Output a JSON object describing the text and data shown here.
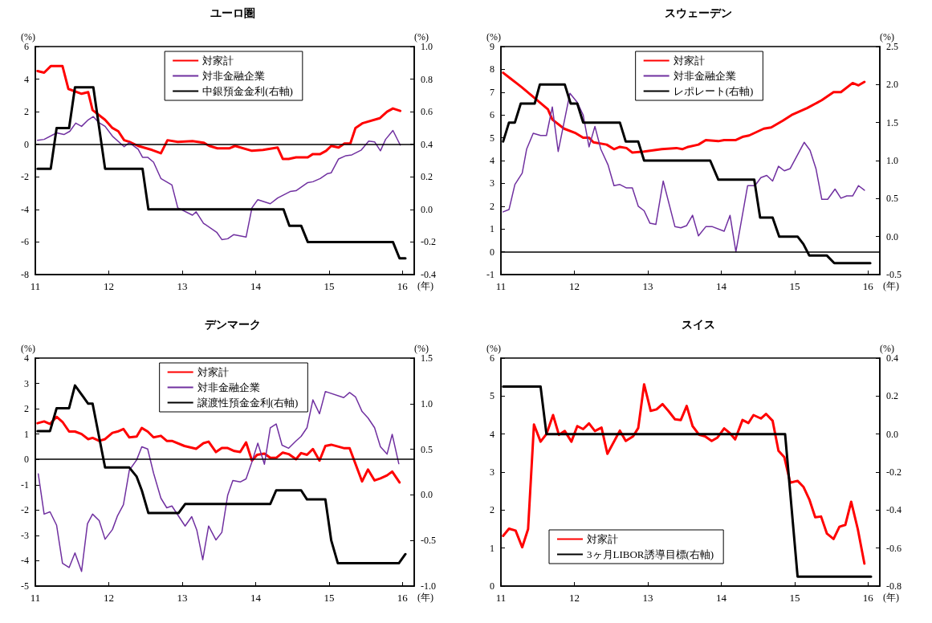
{
  "chart_data": [
    {
      "type": "line",
      "title": "ユーロ圏",
      "xlabel": "(年)",
      "ylabel": "(%)",
      "y2label": "(%)",
      "xlim": [
        11,
        16.16
      ],
      "xticks": [
        11,
        12,
        13,
        14,
        15,
        16
      ],
      "ylim": [
        -8,
        6
      ],
      "yticks": [
        -8,
        -6,
        -4,
        -2,
        0,
        2,
        4,
        6
      ],
      "y2lim": [
        -0.4,
        1.0
      ],
      "y2ticks": [
        -0.4,
        -0.2,
        {
          "value": 0,
          "label": "0.0"
        },
        0.2,
        0.4,
        0.6,
        0.8,
        {
          "value": 1,
          "label": "1.0"
        }
      ],
      "legend": "top",
      "marker": "none",
      "ref_lines": [
        {
          "axis": "y",
          "value": 0,
          "color": "#000000"
        }
      ],
      "series": [
        {
          "name": "対家計",
          "color": "#ff0000",
          "x": [
            11.03,
            11.12,
            11.21,
            11.37,
            11.45,
            11.63,
            11.72,
            11.78,
            11.95,
            12.05,
            12.13,
            12.21,
            12.28,
            12.4,
            12.59,
            12.71,
            12.8,
            12.94,
            13.14,
            13.29,
            13.37,
            13.48,
            13.64,
            13.72,
            13.95,
            14.1,
            14.3,
            14.37,
            14.45,
            14.55,
            14.71,
            14.78,
            14.88,
            14.96,
            15.03,
            15.13,
            15.21,
            15.29,
            15.36,
            15.46,
            15.69,
            15.79,
            15.87,
            15.97
          ],
          "values": [
            4.5,
            4.4,
            4.8,
            4.8,
            3.4,
            3.1,
            3.2,
            2.1,
            1.5,
            1.0,
            0.8,
            0.25,
            0.15,
            -0.1,
            -0.35,
            -0.55,
            0.25,
            0.15,
            0.2,
            0.1,
            -0.1,
            -0.25,
            -0.25,
            -0.1,
            -0.4,
            -0.35,
            -0.2,
            -0.9,
            -0.9,
            -0.8,
            -0.8,
            -0.6,
            -0.6,
            -0.4,
            -0.1,
            -0.2,
            0.05,
            0.05,
            1.0,
            1.3,
            1.6,
            2.0,
            2.2,
            2.05
          ]
        },
        {
          "name": "対非金融企業",
          "color": "#7030a0",
          "x": [
            11.03,
            11.12,
            11.29,
            11.39,
            11.47,
            11.55,
            11.63,
            11.72,
            11.79,
            11.86,
            11.95,
            12.05,
            12.21,
            12.28,
            12.4,
            12.46,
            12.53,
            12.61,
            12.71,
            12.86,
            12.94,
            13.14,
            13.19,
            13.29,
            13.47,
            13.54,
            13.62,
            13.7,
            13.87,
            13.95,
            14.03,
            14.2,
            14.3,
            14.47,
            14.55,
            14.71,
            14.78,
            14.88,
            14.98,
            15.03,
            15.13,
            15.23,
            15.31,
            15.44,
            15.54,
            15.62,
            15.7,
            15.77,
            15.87,
            15.97
          ],
          "values": [
            0.25,
            0.3,
            0.7,
            0.6,
            0.8,
            1.3,
            1.1,
            1.5,
            1.7,
            1.35,
            1.1,
            0.5,
            -0.15,
            0.1,
            -0.3,
            -0.8,
            -0.8,
            -1.1,
            -2.1,
            -2.5,
            -3.9,
            -4.35,
            -4.15,
            -4.85,
            -5.4,
            -5.85,
            -5.8,
            -5.55,
            -5.7,
            -3.9,
            -3.4,
            -3.65,
            -3.3,
            -2.9,
            -2.85,
            -2.35,
            -2.3,
            -2.1,
            -1.8,
            -1.75,
            -0.9,
            -0.7,
            -0.65,
            -0.35,
            0.2,
            0.15,
            -0.4,
            0.3,
            0.85,
            -0.05
          ]
        },
        {
          "name": "中銀預金金利(右軸)",
          "color": "#000000",
          "axis": "y2",
          "x": [
            11.03,
            11.21,
            11.29,
            11.46,
            11.54,
            11.79,
            11.95,
            12.46,
            12.54,
            14.38,
            14.46,
            14.62,
            14.71,
            15.87,
            15.96,
            16.04
          ],
          "values": [
            0.25,
            0.25,
            0.5,
            0.5,
            0.75,
            0.75,
            0.25,
            0.25,
            0,
            0,
            -0.1,
            -0.1,
            -0.2,
            -0.2,
            -0.3,
            -0.3
          ]
        }
      ]
    },
    {
      "type": "line",
      "title": "スウェーデン",
      "xlabel": "(年)",
      "ylabel": "(%)",
      "y2label": "(%)",
      "xlim": [
        11,
        16.16
      ],
      "xticks": [
        11,
        12,
        13,
        14,
        15,
        16
      ],
      "ylim": [
        -1,
        9
      ],
      "yticks": [
        -1,
        0,
        1,
        2,
        3,
        4,
        5,
        6,
        7,
        8,
        9
      ],
      "y2lim": [
        -0.5,
        2.5
      ],
      "y2ticks": [
        -0.5,
        {
          "value": 0,
          "label": "0.0"
        },
        0.5,
        {
          "value": 1,
          "label": "1.0"
        },
        1.5,
        {
          "value": 2,
          "label": "2.0"
        },
        2.5
      ],
      "legend": "top",
      "marker": "none",
      "ref_lines": [
        {
          "axis": "y",
          "value": 0,
          "color": "#000000"
        }
      ],
      "series": [
        {
          "name": "対家計",
          "color": "#ff0000",
          "x": [
            11.03,
            11.13,
            11.21,
            11.29,
            11.42,
            11.64,
            11.7,
            11.86,
            12.02,
            12.12,
            12.2,
            12.26,
            12.44,
            12.54,
            12.62,
            12.71,
            12.79,
            12.95,
            13.19,
            13.39,
            13.47,
            13.55,
            13.69,
            13.79,
            13.96,
            14.04,
            14.2,
            14.3,
            14.38,
            14.48,
            14.58,
            14.68,
            14.84,
            14.96,
            15.17,
            15.37,
            15.53,
            15.63,
            15.79,
            15.87,
            15.95
          ],
          "values": [
            7.85,
            7.6,
            7.4,
            7.2,
            6.85,
            6.25,
            5.8,
            5.4,
            5.2,
            5.0,
            5.0,
            4.8,
            4.7,
            4.5,
            4.6,
            4.55,
            4.35,
            4.4,
            4.5,
            4.55,
            4.5,
            4.6,
            4.7,
            4.9,
            4.85,
            4.9,
            4.9,
            5.05,
            5.1,
            5.25,
            5.4,
            5.45,
            5.75,
            6.0,
            6.3,
            6.65,
            7.0,
            7.0,
            7.4,
            7.3,
            7.45
          ]
        },
        {
          "name": "対非金融企業",
          "color": "#7030a0",
          "x": [
            11.03,
            11.11,
            11.19,
            11.29,
            11.35,
            11.44,
            11.54,
            11.62,
            11.7,
            11.78,
            11.94,
            12.04,
            12.12,
            12.2,
            12.28,
            12.36,
            12.46,
            12.54,
            12.62,
            12.71,
            12.79,
            12.87,
            12.95,
            13.03,
            13.11,
            13.21,
            13.37,
            13.45,
            13.53,
            13.61,
            13.69,
            13.79,
            13.88,
            14.04,
            14.12,
            14.2,
            14.36,
            14.46,
            14.54,
            14.62,
            14.7,
            14.78,
            14.86,
            14.94,
            15.13,
            15.21,
            15.29,
            15.37,
            15.45,
            15.55,
            15.63,
            15.71,
            15.79,
            15.87,
            15.95
          ],
          "values": [
            1.75,
            1.85,
            2.95,
            3.45,
            4.5,
            5.2,
            5.1,
            5.1,
            6.35,
            4.4,
            6.95,
            6.55,
            6.0,
            4.6,
            5.5,
            4.5,
            3.8,
            2.9,
            2.95,
            2.8,
            2.8,
            2.0,
            1.8,
            1.25,
            1.2,
            3.1,
            1.1,
            1.05,
            1.15,
            1.6,
            0.7,
            1.1,
            1.1,
            0.9,
            1.6,
            0.0,
            2.9,
            2.9,
            3.25,
            3.35,
            3.1,
            3.75,
            3.55,
            3.65,
            4.8,
            4.45,
            3.65,
            2.3,
            2.3,
            2.75,
            2.35,
            2.45,
            2.45,
            2.9,
            2.7
          ]
        },
        {
          "name": "レポレート(右軸)",
          "color": "#000000",
          "axis": "y2",
          "x": [
            11.03,
            11.11,
            11.19,
            11.27,
            11.46,
            11.53,
            11.87,
            11.95,
            12.04,
            12.12,
            12.62,
            12.7,
            12.87,
            12.95,
            13.85,
            13.96,
            14.45,
            14.53,
            14.7,
            14.79,
            15.04,
            15.12,
            15.2,
            15.44,
            15.54,
            16.03
          ],
          "values": [
            1.25,
            1.5,
            1.5,
            1.75,
            1.75,
            2.0,
            2.0,
            1.75,
            1.75,
            1.5,
            1.5,
            1.25,
            1.25,
            1.0,
            1.0,
            0.75,
            0.75,
            0.25,
            0.25,
            0,
            0,
            -0.1,
            -0.25,
            -0.25,
            -0.35,
            -0.35
          ]
        }
      ]
    },
    {
      "type": "line",
      "title": "デンマーク",
      "xlabel": "(年)",
      "ylabel": "(%)",
      "y2label": "(%)",
      "xlim": [
        11,
        16.16
      ],
      "xticks": [
        11,
        12,
        13,
        14,
        15,
        16
      ],
      "ylim": [
        -5,
        4
      ],
      "yticks": [
        -5,
        -4,
        -3,
        -2,
        -1,
        0,
        1,
        2,
        3,
        4
      ],
      "y2lim": [
        -1.0,
        1.5
      ],
      "y2ticks": [
        {
          "value": -1,
          "label": "-1.0"
        },
        -0.5,
        {
          "value": 0,
          "label": "0.0"
        },
        0.5,
        {
          "value": 1,
          "label": "1.0"
        },
        1.5
      ],
      "legend": "top",
      "marker": "none",
      "ref_lines": [
        {
          "axis": "y",
          "value": 0,
          "color": "#000000"
        }
      ],
      "series": [
        {
          "name": "対家計",
          "color": "#ff0000",
          "x": [
            11.03,
            11.12,
            11.2,
            11.29,
            11.37,
            11.46,
            11.54,
            11.63,
            11.72,
            11.78,
            11.87,
            11.95,
            12.05,
            12.12,
            12.2,
            12.28,
            12.38,
            12.45,
            12.53,
            12.61,
            12.71,
            12.79,
            12.86,
            13.03,
            13.19,
            13.29,
            13.36,
            13.46,
            13.54,
            13.62,
            13.71,
            13.79,
            13.87,
            13.95,
            14.02,
            14.12,
            14.2,
            14.28,
            14.37,
            14.45,
            14.55,
            14.62,
            14.7,
            14.78,
            14.87,
            14.95,
            15.03,
            15.21,
            15.28,
            15.45,
            15.53,
            15.62,
            15.7,
            15.79,
            15.86,
            15.96
          ],
          "values": [
            1.43,
            1.5,
            1.4,
            1.68,
            1.48,
            1.1,
            1.1,
            1.0,
            0.8,
            0.85,
            0.73,
            0.8,
            1.05,
            1.1,
            1.2,
            0.87,
            0.9,
            1.24,
            1.1,
            0.87,
            0.93,
            0.73,
            0.73,
            0.53,
            0.42,
            0.64,
            0.7,
            0.29,
            0.45,
            0.45,
            0.33,
            0.29,
            0.67,
            -0.05,
            0.18,
            0.23,
            0.06,
            0.06,
            0.27,
            0.21,
            0.01,
            0.25,
            0.18,
            0.41,
            -0.05,
            0.53,
            0.58,
            0.44,
            0.44,
            -0.87,
            -0.4,
            -0.83,
            -0.75,
            -0.63,
            -0.48,
            -0.91
          ]
        },
        {
          "name": "対非金融企業",
          "color": "#7030a0",
          "x": [
            11.04,
            11.12,
            11.2,
            11.29,
            11.37,
            11.46,
            11.54,
            11.63,
            11.71,
            11.78,
            11.87,
            11.95,
            12.05,
            12.12,
            12.2,
            12.28,
            12.38,
            12.45,
            12.53,
            12.61,
            12.71,
            12.79,
            12.86,
            13.04,
            13.13,
            13.2,
            13.28,
            13.36,
            13.46,
            13.54,
            13.62,
            13.69,
            13.79,
            13.87,
            13.95,
            14.03,
            14.12,
            14.2,
            14.28,
            14.36,
            14.45,
            14.55,
            14.62,
            14.7,
            14.78,
            14.87,
            14.95,
            15.2,
            15.28,
            15.36,
            15.45,
            15.53,
            15.62,
            15.7,
            15.79,
            15.86,
            15.95
          ],
          "values": [
            -0.57,
            -2.16,
            -2.07,
            -2.6,
            -4.1,
            -4.27,
            -3.69,
            -4.42,
            -2.54,
            -2.16,
            -2.42,
            -3.15,
            -2.77,
            -2.22,
            -1.79,
            -0.43,
            -0.02,
            0.5,
            0.41,
            -0.54,
            -1.53,
            -1.91,
            -1.84,
            -2.63,
            -2.26,
            -2.8,
            -3.96,
            -2.63,
            -3.18,
            -2.88,
            -1.41,
            -0.83,
            -0.89,
            -0.77,
            -0.1,
            0.64,
            -0.19,
            1.25,
            1.4,
            0.56,
            0.44,
            0.73,
            0.91,
            1.25,
            2.35,
            1.8,
            2.68,
            2.44,
            2.64,
            2.47,
            1.89,
            1.64,
            1.25,
            0.5,
            0.21,
            0.99,
            -0.17
          ]
        },
        {
          "name": "譲渡性預金金利(右軸)",
          "color": "#000000",
          "axis": "y2",
          "x": [
            11.03,
            11.2,
            11.29,
            11.46,
            11.54,
            11.63,
            11.72,
            11.78,
            11.95,
            12.28,
            12.38,
            12.45,
            12.54,
            12.95,
            13.04,
            14.2,
            14.28,
            14.62,
            14.7,
            14.95,
            15.03,
            15.12,
            15.95,
            16.04
          ],
          "values": [
            0.7,
            0.7,
            0.95,
            0.95,
            1.2,
            1.1,
            1.0,
            1.0,
            0.3,
            0.3,
            0.2,
            0.05,
            -0.2,
            -0.2,
            -0.1,
            -0.1,
            0.05,
            0.05,
            -0.05,
            -0.05,
            -0.5,
            -0.75,
            -0.75,
            -0.65
          ]
        }
      ]
    },
    {
      "type": "line",
      "title": "スイス",
      "xlabel": "(年)",
      "ylabel": "(%)",
      "y2label": "(%)",
      "xlim": [
        11,
        16.16
      ],
      "xticks": [
        11,
        12,
        13,
        14,
        15,
        16
      ],
      "ylim": [
        0,
        6
      ],
      "yticks": [
        0,
        1,
        2,
        3,
        4,
        5,
        6
      ],
      "y2lim": [
        -0.8,
        0.4
      ],
      "y2ticks": [
        -0.8,
        -0.6,
        -0.4,
        -0.2,
        {
          "value": 0,
          "label": "0.0"
        },
        0.2,
        0.4
      ],
      "legend": "bottom left",
      "marker": "none",
      "series": [
        {
          "name": "対家計",
          "color": "#ff0000",
          "x": [
            11.03,
            11.11,
            11.2,
            11.29,
            11.37,
            11.45,
            11.54,
            11.62,
            11.71,
            11.79,
            11.87,
            11.96,
            12.04,
            12.12,
            12.2,
            12.28,
            12.37,
            12.45,
            12.62,
            12.7,
            12.8,
            12.87,
            12.95,
            13.04,
            13.12,
            13.2,
            13.28,
            13.37,
            13.45,
            13.53,
            13.61,
            13.7,
            13.78,
            13.87,
            13.95,
            14.04,
            14.12,
            14.19,
            14.29,
            14.37,
            14.44,
            14.54,
            14.61,
            14.7,
            14.78,
            14.86,
            14.94,
            15.04,
            15.12,
            15.2,
            15.28,
            15.36,
            15.44,
            15.53,
            15.61,
            15.69,
            15.77,
            15.86,
            15.95
          ],
          "values": [
            1.32,
            1.51,
            1.46,
            1.02,
            1.5,
            4.25,
            3.8,
            4.0,
            4.5,
            3.98,
            4.08,
            3.8,
            4.21,
            4.13,
            4.28,
            4.08,
            4.17,
            3.48,
            4.09,
            3.82,
            3.94,
            4.16,
            5.31,
            4.61,
            4.65,
            4.79,
            4.61,
            4.39,
            4.37,
            4.74,
            4.21,
            3.98,
            3.94,
            3.82,
            3.91,
            4.15,
            4.02,
            3.86,
            4.37,
            4.29,
            4.5,
            4.41,
            4.53,
            4.35,
            3.56,
            3.39,
            2.72,
            2.77,
            2.61,
            2.28,
            1.81,
            1.83,
            1.38,
            1.24,
            1.56,
            1.61,
            2.22,
            1.5,
            0.59
          ]
        },
        {
          "name": "3ヶ月LIBOR誘導目標(右軸)",
          "color": "#000000",
          "axis": "y2",
          "x": [
            11.03,
            11.54,
            11.62,
            14.87,
            15.04,
            16.04
          ],
          "values": [
            0.25,
            0.25,
            0,
            0,
            -0.75,
            -0.75
          ]
        }
      ]
    }
  ]
}
